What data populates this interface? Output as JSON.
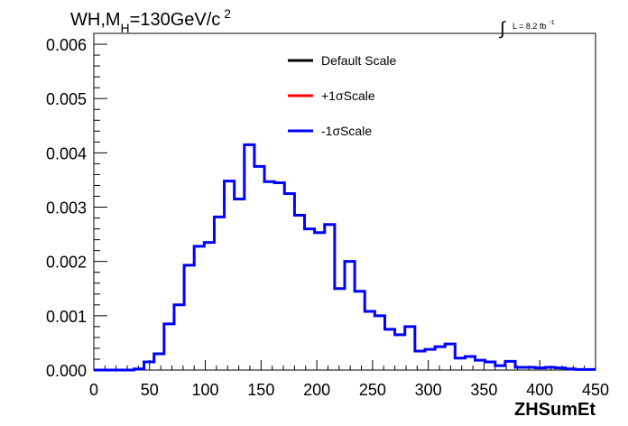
{
  "chart_data": {
    "type": "step-histogram",
    "title_main": "WH,M",
    "title_sub": "H",
    "title_rest": "=130GeV/c",
    "title_sup": "2",
    "lumi_prefix": "∫",
    "lumi_text": "L = 8.2 fb",
    "lumi_sup": "-1",
    "xlabel": "ZHSumEt",
    "xlim": [
      0,
      450
    ],
    "ylim": [
      0,
      0.0062
    ],
    "xticks": [
      0,
      50,
      100,
      150,
      200,
      250,
      300,
      350,
      400,
      450
    ],
    "xtick_labels": [
      "0",
      "50",
      "100",
      "150",
      "200",
      "250",
      "300",
      "350",
      "400",
      "450"
    ],
    "yticks": [
      0,
      0.001,
      0.002,
      0.003,
      0.004,
      0.005,
      0.006
    ],
    "ytick_labels": [
      "0.000",
      "0.001",
      "0.002",
      "0.003",
      "0.004",
      "0.005",
      "0.006"
    ],
    "bin_width": 9,
    "bin_edges_start": 0,
    "legend": [
      {
        "name": "Default Scale",
        "color": "#000000"
      },
      {
        "name": "+1σScale",
        "color": "#ff0000"
      },
      {
        "name": "-1σScale",
        "color": "#0000ff"
      }
    ],
    "series": [
      {
        "name": "-1σScale",
        "color": "#0000ff",
        "values": [
          0,
          0,
          0,
          0,
          2e-05,
          0.00015,
          0.0003,
          0.00085,
          0.0012,
          0.00193,
          0.00228,
          0.00235,
          0.00282,
          0.00348,
          0.00315,
          0.00415,
          0.00375,
          0.00347,
          0.00345,
          0.00325,
          0.00285,
          0.0026,
          0.00253,
          0.00268,
          0.0015,
          0.002,
          0.00145,
          0.00108,
          0.001,
          0.00075,
          0.00065,
          0.0008,
          0.00035,
          0.00038,
          0.00043,
          0.00048,
          0.00022,
          0.00025,
          0.00018,
          0.00015,
          8e-05,
          0.00016,
          5e-05,
          5e-05,
          4e-05,
          5e-05,
          4e-05,
          2e-05,
          1e-05,
          1e-05
        ]
      }
    ]
  }
}
